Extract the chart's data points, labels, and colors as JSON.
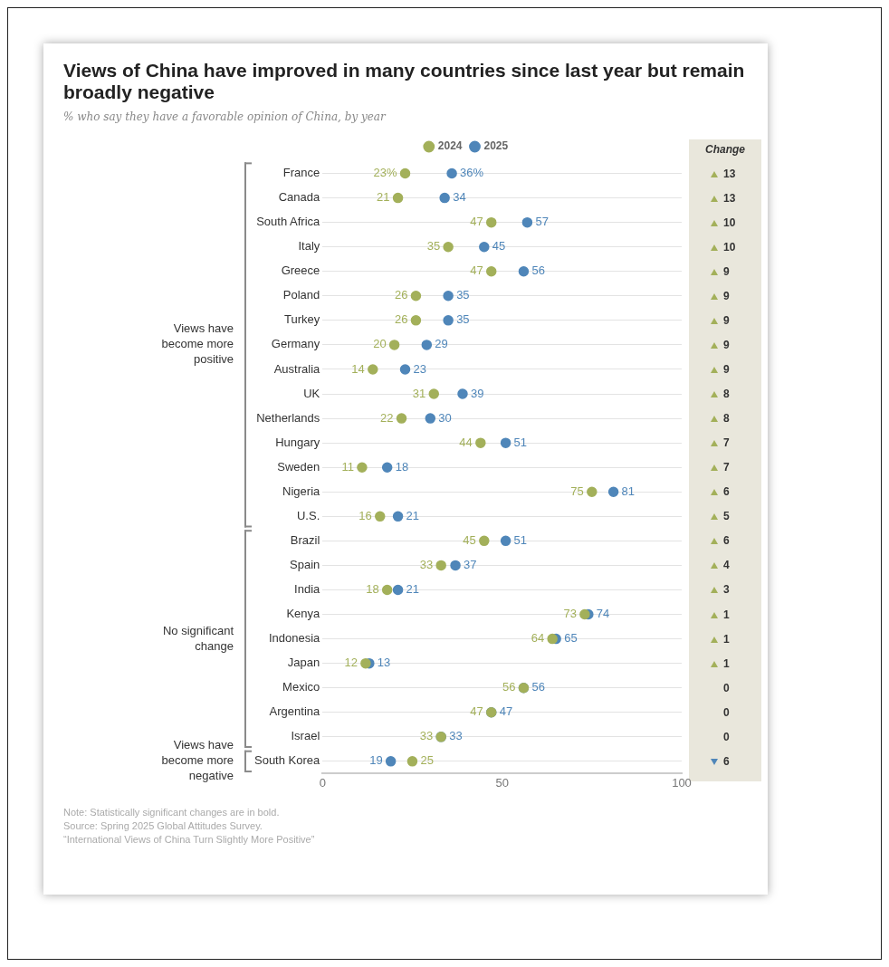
{
  "chart_data": {
    "type": "scatter",
    "orientation": "horizontal",
    "title": "Views of China have improved in many countries since last year but remain broadly negative",
    "subtitle": "% who say they have a favorable opinion of China, by year",
    "categories": [
      "France",
      "Canada",
      "South Africa",
      "Italy",
      "Greece",
      "Poland",
      "Turkey",
      "Germany",
      "Australia",
      "UK",
      "Netherlands",
      "Hungary",
      "Sweden",
      "Nigeria",
      "U.S.",
      "Brazil",
      "Spain",
      "India",
      "Kenya",
      "Indonesia",
      "Japan",
      "Mexico",
      "Argentina",
      "Israel",
      "South Korea"
    ],
    "series": [
      {
        "name": "2024",
        "color": "#a3b05a",
        "values": [
          23,
          21,
          47,
          35,
          47,
          26,
          26,
          20,
          14,
          31,
          22,
          44,
          11,
          75,
          16,
          45,
          33,
          18,
          73,
          64,
          12,
          56,
          47,
          33,
          25
        ],
        "value_labels": [
          "23%",
          "21",
          "47",
          "35",
          "47",
          "26",
          "26",
          "20",
          "14",
          "31",
          "22",
          "44",
          "11",
          "75",
          "16",
          "45",
          "33",
          "18",
          "73",
          "64",
          "12",
          "56",
          "47",
          "33",
          "25"
        ]
      },
      {
        "name": "2025",
        "color": "#4f86b9",
        "values": [
          36,
          34,
          57,
          45,
          56,
          35,
          35,
          29,
          23,
          39,
          30,
          51,
          18,
          81,
          21,
          51,
          37,
          21,
          74,
          65,
          13,
          56,
          47,
          33,
          19
        ],
        "value_labels": [
          "36%",
          "34",
          "57",
          "45",
          "56",
          "35",
          "35",
          "29",
          "23",
          "39",
          "30",
          "51",
          "18",
          "81",
          "21",
          "51",
          "37",
          "21",
          "74",
          "65",
          "13",
          "56",
          "47",
          "33",
          "19"
        ]
      }
    ],
    "xlim": [
      0,
      100
    ],
    "xticks": [
      0,
      50,
      100
    ],
    "grid": "y",
    "legend": "top",
    "marker": "circle",
    "annotations": [
      "Change",
      "13",
      "13",
      "10",
      "10",
      "9",
      "9",
      "9",
      "9",
      "9",
      "8",
      "8",
      "7",
      "7",
      "6",
      "5",
      "6",
      "4",
      "3",
      "1",
      "1",
      "1",
      "0",
      "0",
      "0",
      "6",
      "Views have become more positive",
      "No significant change",
      "Views have become more negative",
      "Note: Statistically significant changes are in bold.",
      "Source: Spring 2025 Global Attitudes Survey.",
      "“International Views of China Turn Slightly More Positive”"
    ]
  }
}
